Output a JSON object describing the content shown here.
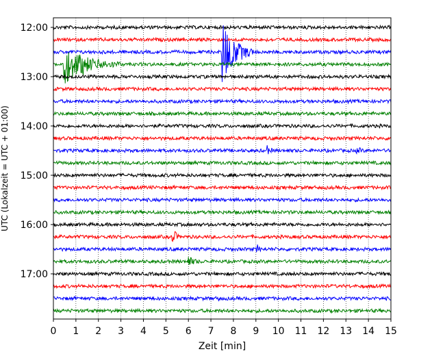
{
  "chart_data": {
    "type": "line",
    "title": "",
    "xlabel": "Zeit  [min]",
    "ylabel": "UTC (Lokalzeit = UTC + 01:00)",
    "xlim": [
      0,
      15
    ],
    "x_ticks": [
      "0",
      "1",
      "2",
      "3",
      "4",
      "5",
      "6",
      "7",
      "8",
      "9",
      "10",
      "11",
      "12",
      "13",
      "14",
      "15"
    ],
    "y_ticks": [
      "12:00",
      "13:00",
      "14:00",
      "15:00",
      "16:00",
      "17:00"
    ],
    "grid": "vertical dotted at each minute",
    "trace_interval_minutes": 15,
    "traces": [
      {
        "start": "12:00",
        "color": "#000000",
        "events": []
      },
      {
        "start": "12:15",
        "color": "#ff0000",
        "events": []
      },
      {
        "start": "12:30",
        "color": "#0000ff",
        "events": [
          {
            "minute": 7.5,
            "amplitude": 2.8,
            "duration_min": 1.4
          }
        ]
      },
      {
        "start": "12:45",
        "color": "#008000",
        "events": [
          {
            "minute": 0.45,
            "amplitude": 1.6,
            "duration_min": 2.5
          },
          {
            "minute": 1.3,
            "amplitude": 0.9,
            "duration_min": 0.7
          }
        ]
      },
      {
        "start": "13:00",
        "color": "#000000",
        "events": []
      },
      {
        "start": "13:15",
        "color": "#ff0000",
        "events": []
      },
      {
        "start": "13:30",
        "color": "#0000ff",
        "events": []
      },
      {
        "start": "13:45",
        "color": "#008000",
        "events": []
      },
      {
        "start": "14:00",
        "color": "#000000",
        "events": []
      },
      {
        "start": "14:15",
        "color": "#ff0000",
        "events": []
      },
      {
        "start": "14:30",
        "color": "#0000ff",
        "events": [
          {
            "minute": 9.5,
            "amplitude": 0.3,
            "duration_min": 0.3
          },
          {
            "minute": 13.5,
            "amplitude": 0.3,
            "duration_min": 0.3
          }
        ]
      },
      {
        "start": "14:45",
        "color": "#008000",
        "events": []
      },
      {
        "start": "15:00",
        "color": "#000000",
        "events": []
      },
      {
        "start": "15:15",
        "color": "#ff0000",
        "events": []
      },
      {
        "start": "15:30",
        "color": "#0000ff",
        "events": []
      },
      {
        "start": "15:45",
        "color": "#008000",
        "events": []
      },
      {
        "start": "16:00",
        "color": "#000000",
        "events": []
      },
      {
        "start": "16:15",
        "color": "#ff0000",
        "events": [
          {
            "minute": 5.3,
            "amplitude": 0.9,
            "duration_min": 0.3
          }
        ]
      },
      {
        "start": "16:30",
        "color": "#0000ff",
        "events": [
          {
            "minute": 9.05,
            "amplitude": 0.4,
            "duration_min": 0.2
          }
        ]
      },
      {
        "start": "16:45",
        "color": "#008000",
        "events": [
          {
            "minute": 6.0,
            "amplitude": 0.4,
            "duration_min": 0.5
          }
        ]
      },
      {
        "start": "17:00",
        "color": "#000000",
        "events": []
      },
      {
        "start": "17:15",
        "color": "#ff0000",
        "events": []
      },
      {
        "start": "17:30",
        "color": "#0000ff",
        "events": [
          {
            "minute": 7.3,
            "amplitude": 0.25,
            "duration_min": 0.2
          }
        ]
      },
      {
        "start": "17:45",
        "color": "#008000",
        "events": []
      }
    ]
  }
}
